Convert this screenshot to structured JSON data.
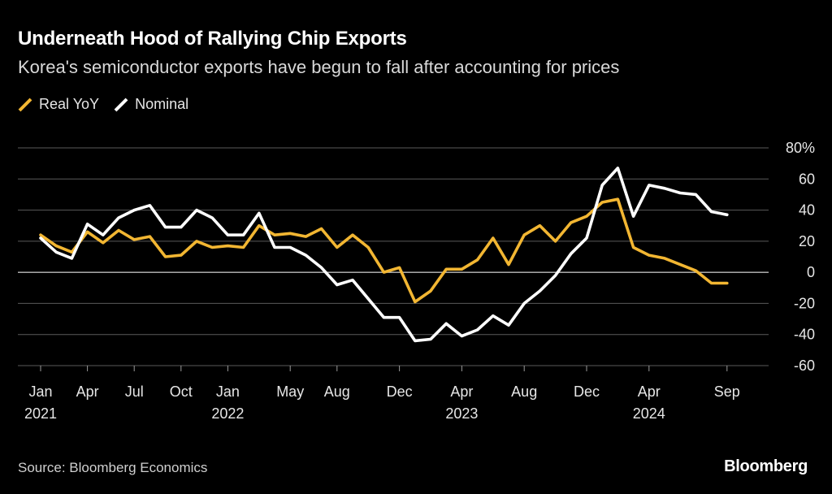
{
  "header": {
    "title": "Underneath Hood of Rallying Chip Exports",
    "subtitle": "Korea's semiconductor exports have begun to fall after accounting for prices"
  },
  "legend": [
    {
      "label": "Real YoY",
      "color": "#f2b632"
    },
    {
      "label": "Nominal",
      "color": "#ffffff"
    }
  ],
  "footer": {
    "source": "Source: Bloomberg Economics",
    "brand": "Bloomberg"
  },
  "chart_data": {
    "type": "line",
    "ylim": [
      -60,
      80
    ],
    "yticks": [
      80,
      60,
      40,
      20,
      0,
      -20,
      -40,
      -60
    ],
    "ytick_labels": [
      "80%",
      "60",
      "40",
      "20",
      "0",
      "-20",
      "-40",
      "-60"
    ],
    "xlim": [
      0,
      44
    ],
    "xticks": [
      {
        "i": 0,
        "label": "Jan",
        "year": "2021"
      },
      {
        "i": 3,
        "label": "Apr",
        "year": ""
      },
      {
        "i": 6,
        "label": "Jul",
        "year": ""
      },
      {
        "i": 9,
        "label": "Oct",
        "year": ""
      },
      {
        "i": 12,
        "label": "Jan",
        "year": "2022"
      },
      {
        "i": 16,
        "label": "May",
        "year": ""
      },
      {
        "i": 19,
        "label": "Aug",
        "year": ""
      },
      {
        "i": 23,
        "label": "Dec",
        "year": ""
      },
      {
        "i": 27,
        "label": "Apr",
        "year": "2023"
      },
      {
        "i": 31,
        "label": "Aug",
        "year": ""
      },
      {
        "i": 35,
        "label": "Dec",
        "year": ""
      },
      {
        "i": 39,
        "label": "Apr",
        "year": "2024"
      },
      {
        "i": 44,
        "label": "Sep",
        "year": ""
      }
    ],
    "series": [
      {
        "name": "Real YoY",
        "color": "#f2b632",
        "values": [
          24,
          17,
          13,
          26,
          19,
          27,
          21,
          23,
          10,
          11,
          20,
          16,
          17,
          16,
          30,
          24,
          25,
          23,
          28,
          16,
          24,
          16,
          0,
          3,
          -19,
          -12,
          2,
          2,
          8,
          22,
          5,
          24,
          30,
          20,
          32,
          36,
          45,
          47,
          16,
          11,
          9,
          5,
          1,
          -7,
          -7
        ]
      },
      {
        "name": "Nominal",
        "color": "#ffffff",
        "values": [
          22,
          13,
          9,
          31,
          24,
          35,
          40,
          43,
          29,
          29,
          40,
          35,
          24,
          24,
          38,
          16,
          16,
          11,
          3,
          -8,
          -5,
          -17,
          -29,
          -29,
          -44,
          -43,
          -33,
          -41,
          -37,
          -28,
          -34,
          -20,
          -12,
          -2,
          12,
          22,
          56,
          67,
          36,
          56,
          54,
          51,
          50,
          39,
          37
        ]
      }
    ]
  }
}
